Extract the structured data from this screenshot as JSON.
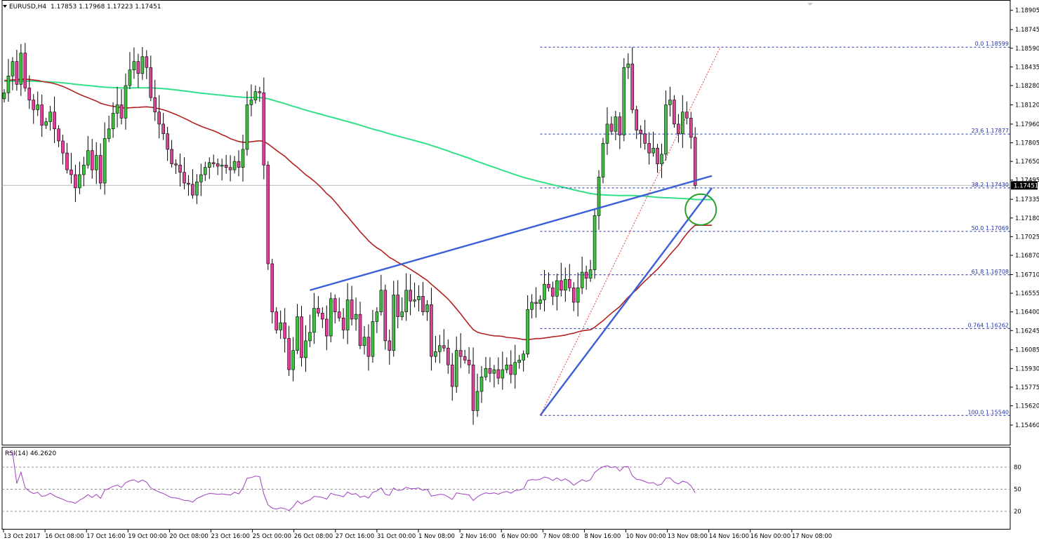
{
  "header": {
    "symbol_label": "EURUSD,H4",
    "ohlc": "1.17853 1.17968 1.17223 1.17451"
  },
  "rsi": {
    "label": "RSI(14) 46.2620",
    "levels": [
      "80",
      "50",
      "20"
    ],
    "ticks": [
      80,
      50,
      20
    ],
    "range": [
      0,
      100
    ]
  },
  "colors": {
    "bull": "#40c040",
    "bear": "#e0409a",
    "wick": "#000000",
    "ma_fast": "#b22222",
    "ma_slow": "#33e08a",
    "trendline": "#3a5fd6",
    "fib": "#2233aa",
    "diagonal": "#e04040",
    "circle": "#2ca02c",
    "rsi_line": "#a040c0",
    "last_price_bg": "#000000"
  },
  "chart_data": {
    "type": "candlestick",
    "symbol": "EURUSD",
    "timeframe": "H4",
    "ylim": [
      1.1546,
      1.1895
    ],
    "y_ticks": [
      "1.18905",
      "1.18745",
      "1.18590",
      "1.18435",
      "1.18280",
      "1.18120",
      "1.17960",
      "1.17805",
      "1.17650",
      "1.17495",
      "1.17335",
      "1.17180",
      "1.17025",
      "1.16870",
      "1.16710",
      "1.16555",
      "1.16400",
      "1.16245",
      "1.16085",
      "1.15930",
      "1.15775",
      "1.15620",
      "1.15460"
    ],
    "x_ticks": [
      "13 Oct 2017",
      "16 Oct 08:00",
      "17 Oct 16:00",
      "19 Oct 00:00",
      "20 Oct 08:00",
      "23 Oct 16:00",
      "25 Oct 00:00",
      "26 Oct 08:00",
      "27 Oct 16:00",
      "31 Oct 00:00",
      "1 Nov 08:00",
      "2 Nov 16:00",
      "6 Nov 00:00",
      "7 Nov 08:00",
      "8 Nov 16:00",
      "10 Nov 00:00",
      "13 Nov 08:00",
      "14 Nov 16:00",
      "16 Nov 00:00",
      "17 Nov 08:00"
    ],
    "last_price": "1.17451",
    "fib_levels": [
      {
        "label": "0.0 1.18599",
        "price": 1.18599
      },
      {
        "label": "23.6 1.17877",
        "price": 1.17877
      },
      {
        "label": "38.2 1.17430",
        "price": 1.1743
      },
      {
        "label": "50.0 1.17069",
        "price": 1.17069
      },
      {
        "label": "61.8 1.16708",
        "price": 1.16708
      },
      {
        "label": "0.764 1.16262",
        "price": 1.16262
      },
      {
        "label": "100.0 1.15540",
        "price": 1.1554
      }
    ],
    "closes": [
      1.1822,
      1.1836,
      1.1848,
      1.1829,
      1.1855,
      1.1826,
      1.1816,
      1.1808,
      1.1812,
      1.1795,
      1.1798,
      1.1806,
      1.1792,
      1.1782,
      1.1772,
      1.1758,
      1.1754,
      1.1743,
      1.1754,
      1.1762,
      1.1774,
      1.1758,
      1.177,
      1.1747,
      1.1784,
      1.1792,
      1.1805,
      1.1812,
      1.1801,
      1.1828,
      1.1841,
      1.1848,
      1.1838,
      1.1852,
      1.1843,
      1.1818,
      1.1806,
      1.1796,
      1.1788,
      1.1775,
      1.1763,
      1.1762,
      1.1756,
      1.1747,
      1.1746,
      1.1737,
      1.1748,
      1.1754,
      1.176,
      1.1764,
      1.1763,
      1.1761,
      1.1762,
      1.176,
      1.1758,
      1.1765,
      1.176,
      1.1775,
      1.1812,
      1.1816,
      1.1823,
      1.1822,
      1.1762,
      1.168,
      1.164,
      1.1625,
      1.1631,
      1.1618,
      1.1592,
      1.1608,
      1.1636,
      1.1602,
      1.1616,
      1.1623,
      1.1643,
      1.1639,
      1.1634,
      1.162,
      1.1651,
      1.164,
      1.1635,
      1.1625,
      1.165,
      1.1634,
      1.1638,
      1.1612,
      1.1619,
      1.1603,
      1.1632,
      1.164,
      1.1658,
      1.1616,
      1.1608,
      1.1654,
      1.1636,
      1.164,
      1.1658,
      1.1649,
      1.165,
      1.1653,
      1.164,
      1.1646,
      1.1603,
      1.1607,
      1.1612,
      1.161,
      1.1596,
      1.1578,
      1.1608,
      1.1603,
      1.16,
      1.1596,
      1.1558,
      1.1574,
      1.1586,
      1.1593,
      1.1589,
      1.1592,
      1.1585,
      1.1592,
      1.1596,
      1.1588,
      1.1598,
      1.16,
      1.1605,
      1.1642,
      1.1648,
      1.1647,
      1.165,
      1.1663,
      1.166,
      1.1653,
      1.1666,
      1.1658,
      1.1667,
      1.166,
      1.1648,
      1.166,
      1.1673,
      1.1668,
      1.1675,
      1.172,
      1.1752,
      1.178,
      1.1796,
      1.179,
      1.1802,
      1.1787,
      1.1843,
      1.1846,
      1.1808,
      1.1791,
      1.1788,
      1.178,
      1.1772,
      1.1776,
      1.1763,
      1.1771,
      1.1812,
      1.1816,
      1.1796,
      1.1788,
      1.1806,
      1.1801,
      1.1785,
      1.1745
    ]
  }
}
